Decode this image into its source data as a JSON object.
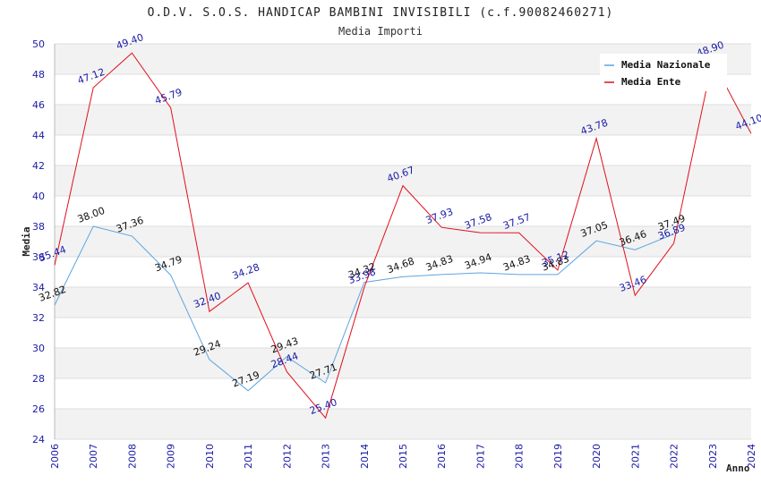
{
  "chart_data": {
    "type": "line",
    "title": "O.D.V. S.O.S. HANDICAP BAMBINI INVISIBILI (c.f.90082460271)",
    "subtitle": "Media Importi",
    "xlabel": "Anno",
    "ylabel": "Media",
    "ylim": [
      24,
      50
    ],
    "yticks": [
      24,
      26,
      28,
      30,
      32,
      34,
      36,
      38,
      40,
      42,
      44,
      46,
      48,
      50
    ],
    "x": [
      2006,
      2007,
      2008,
      2009,
      2010,
      2011,
      2012,
      2013,
      2014,
      2015,
      2016,
      2017,
      2018,
      2019,
      2020,
      2021,
      2022,
      2023,
      2024
    ],
    "grid": "horizontal alternating bands",
    "legend": "top-right",
    "series": [
      {
        "name": "Media Nazionale",
        "color": "#5da5e0",
        "label_color": "#111111",
        "values": [
          32.82,
          38.0,
          37.36,
          34.79,
          29.24,
          27.19,
          29.43,
          27.71,
          34.32,
          34.68,
          34.83,
          34.94,
          34.83,
          34.83,
          37.05,
          36.46,
          37.49,
          null,
          null
        ],
        "labels": [
          "32.82",
          "38.00",
          "37.36",
          "34.79",
          "29.24",
          "27.19",
          "29.43",
          "27.71",
          "34.32",
          "34.68",
          "34.83",
          "34.94",
          "34.83",
          "34.83",
          "37.05",
          "36.46",
          "37.49",
          "",
          ""
        ]
      },
      {
        "name": "Media Ente",
        "color": "#e0101a",
        "label_color": "#1a1aa6",
        "values": [
          35.44,
          47.12,
          49.4,
          45.79,
          32.4,
          34.28,
          28.44,
          25.4,
          33.98,
          40.67,
          37.93,
          37.58,
          37.57,
          35.12,
          43.78,
          33.46,
          36.89,
          48.9,
          44.1
        ],
        "labels": [
          "35.44",
          "47.12",
          "49.40",
          "45.79",
          "32.40",
          "34.28",
          "28.44",
          "25.40",
          "33.98",
          "40.67",
          "37.93",
          "37.58",
          "37.57",
          "35.12",
          "43.78",
          "33.46",
          "36.89",
          "48.90",
          "44.10"
        ]
      }
    ]
  }
}
